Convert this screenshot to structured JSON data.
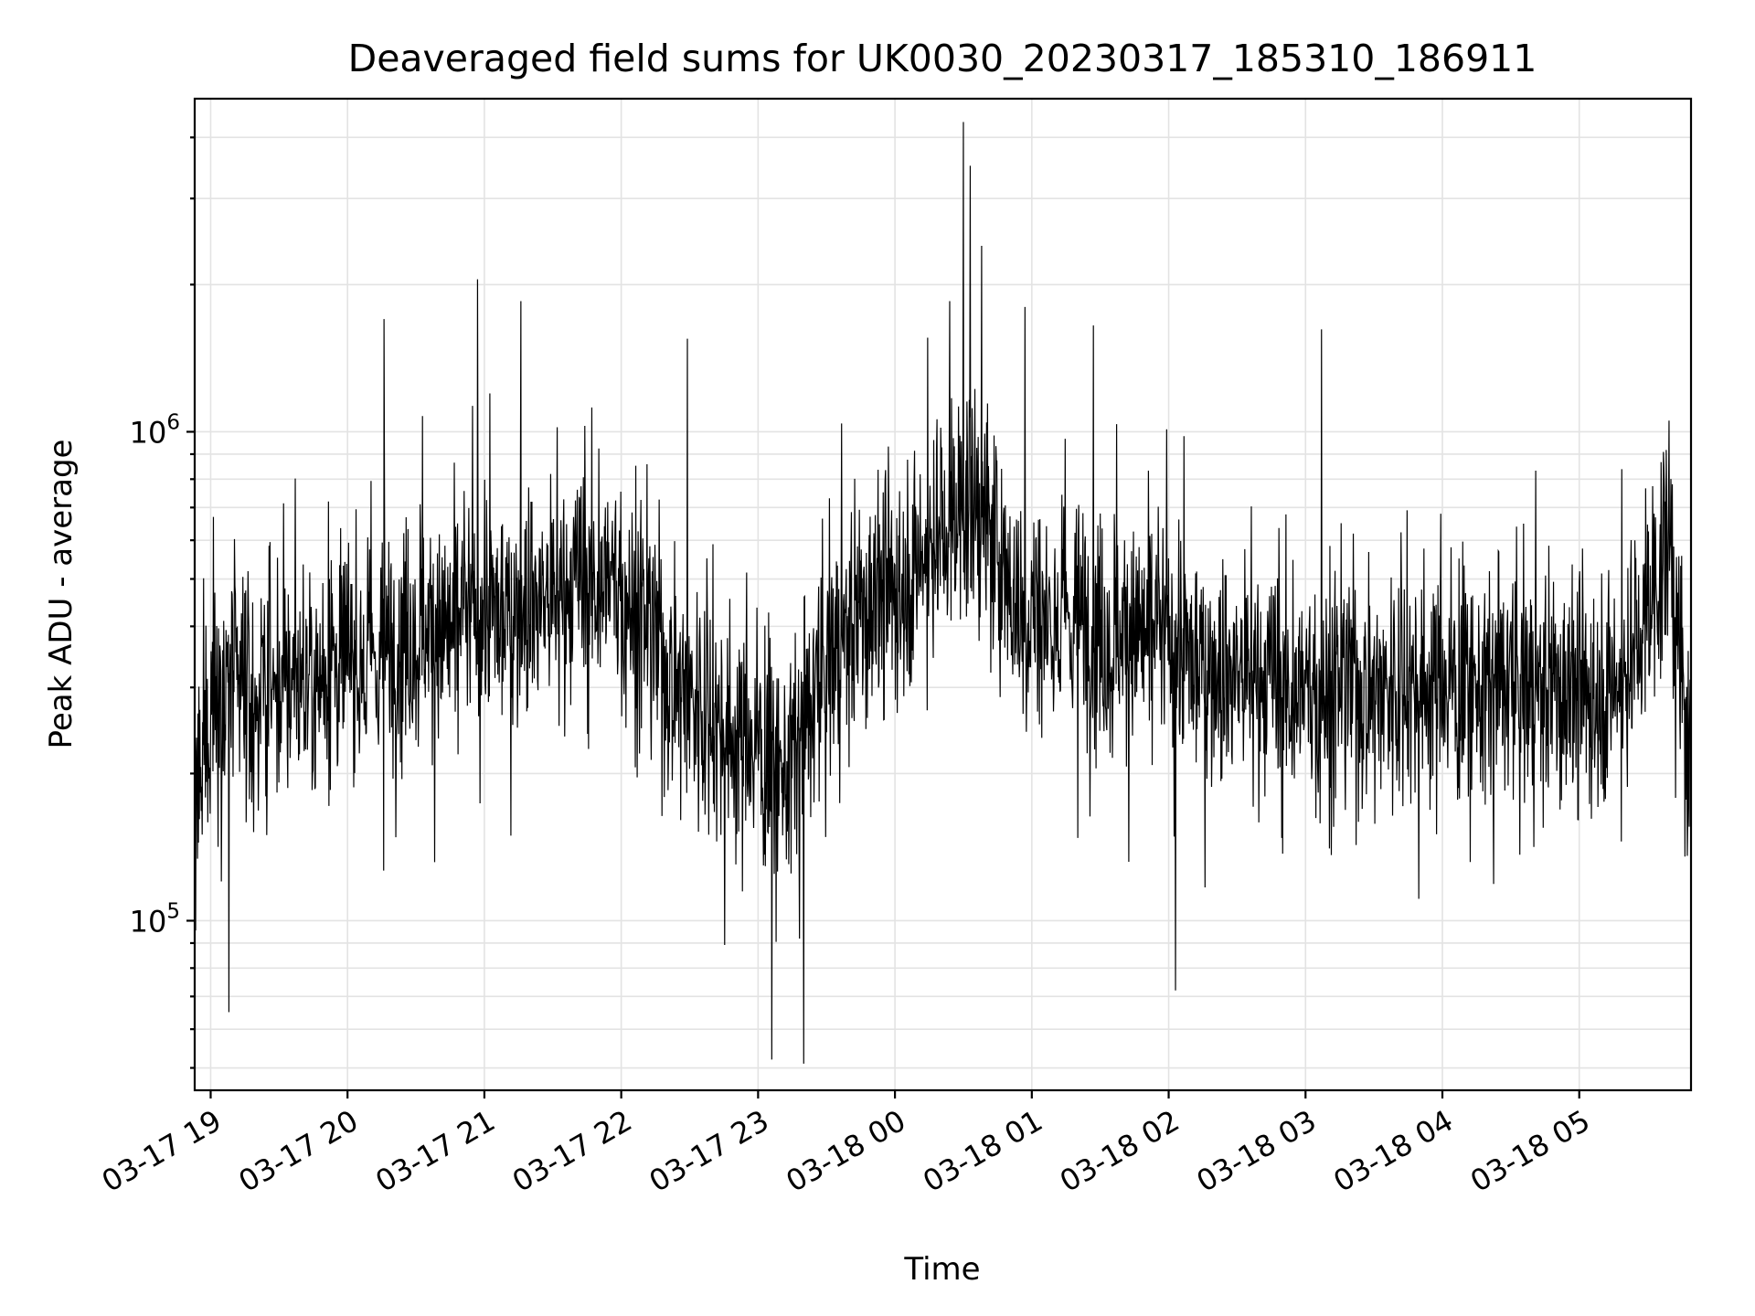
{
  "chart_data": {
    "type": "line",
    "title": "Deaveraged field sums for UK0030_20230317_185310_186911",
    "xlabel": "Time",
    "ylabel": "Peak ADU - average",
    "yscale": "log",
    "grid": true,
    "line_color": "#000000",
    "xlim": [
      "2023-03-17 18:53",
      "2023-03-18 05:49"
    ],
    "ylim": [
      45000,
      4800000
    ],
    "x_ticks": [
      "03-17 19",
      "03-17 20",
      "03-17 21",
      "03-17 22",
      "03-17 23",
      "03-18 00",
      "03-18 01",
      "03-18 02",
      "03-18 03",
      "03-18 04",
      "03-18 05"
    ],
    "y_ticks": [
      {
        "mantissa": "10",
        "exponent": "5",
        "value": 100000
      },
      {
        "mantissa": "10",
        "exponent": "6",
        "value": 1000000
      }
    ],
    "series": [
      {
        "x": [
          "2023-03-17 18:53",
          "2023-03-17 19:00",
          "2023-03-17 19:10",
          "2023-03-17 19:20",
          "2023-03-17 19:30",
          "2023-03-17 19:40",
          "2023-03-17 19:50",
          "2023-03-17 20:00",
          "2023-03-17 20:10",
          "2023-03-17 20:20",
          "2023-03-17 20:30",
          "2023-03-17 20:40",
          "2023-03-17 20:50",
          "2023-03-17 21:00",
          "2023-03-17 21:10",
          "2023-03-17 21:20",
          "2023-03-17 21:30",
          "2023-03-17 21:40",
          "2023-03-17 21:50",
          "2023-03-17 22:00",
          "2023-03-17 22:10",
          "2023-03-17 22:20",
          "2023-03-17 22:30",
          "2023-03-17 22:40",
          "2023-03-17 22:50",
          "2023-03-17 23:00",
          "2023-03-17 23:10",
          "2023-03-17 23:20",
          "2023-03-17 23:30",
          "2023-03-17 23:40",
          "2023-03-17 23:50",
          "2023-03-18 00:00",
          "2023-03-18 00:10",
          "2023-03-18 00:20",
          "2023-03-18 00:30",
          "2023-03-18 00:40",
          "2023-03-18 00:50",
          "2023-03-18 01:00",
          "2023-03-18 01:10",
          "2023-03-18 01:20",
          "2023-03-18 01:30",
          "2023-03-18 01:40",
          "2023-03-18 01:50",
          "2023-03-18 02:00",
          "2023-03-18 02:10",
          "2023-03-18 02:20",
          "2023-03-18 02:30",
          "2023-03-18 02:40",
          "2023-03-18 02:50",
          "2023-03-18 03:00",
          "2023-03-18 03:10",
          "2023-03-18 03:20",
          "2023-03-18 03:30",
          "2023-03-18 03:40",
          "2023-03-18 03:50",
          "2023-03-18 04:00",
          "2023-03-18 04:10",
          "2023-03-18 04:20",
          "2023-03-18 04:30",
          "2023-03-18 04:40",
          "2023-03-18 04:50",
          "2023-03-18 05:00",
          "2023-03-18 05:10",
          "2023-03-18 05:20",
          "2023-03-18 05:30",
          "2023-03-18 05:40",
          "2023-03-18 05:49"
        ],
        "y": [
          150000,
          280000,
          300000,
          290000,
          300000,
          310000,
          330000,
          350000,
          340000,
          360000,
          420000,
          380000,
          400000,
          430000,
          420000,
          460000,
          450000,
          480000,
          500000,
          470000,
          400000,
          330000,
          290000,
          260000,
          240000,
          230000,
          200000,
          240000,
          330000,
          400000,
          450000,
          480000,
          540000,
          620000,
          720000,
          650000,
          480000,
          420000,
          420000,
          410000,
          400000,
          390000,
          380000,
          370000,
          340000,
          330000,
          320000,
          310000,
          300000,
          290000,
          290000,
          300000,
          300000,
          300000,
          310000,
          310000,
          300000,
          300000,
          300000,
          300000,
          300000,
          290000,
          300000,
          310000,
          450000,
          600000,
          180000
        ],
        "noise_amplitude_decades": 0.55,
        "notable_peaks": [
          {
            "x": "2023-03-17 20:16",
            "y": 1700000
          },
          {
            "x": "2023-03-17 20:57",
            "y": 2050000
          },
          {
            "x": "2023-03-17 21:16",
            "y": 1850000
          },
          {
            "x": "2023-03-17 22:29",
            "y": 1550000
          },
          {
            "x": "2023-03-18 00:24",
            "y": 1850000
          },
          {
            "x": "2023-03-18 00:30",
            "y": 4300000
          },
          {
            "x": "2023-03-18 00:33",
            "y": 3500000
          },
          {
            "x": "2023-03-18 00:38",
            "y": 2400000
          },
          {
            "x": "2023-03-18 00:57",
            "y": 1800000
          },
          {
            "x": "2023-03-18 01:27",
            "y": 1650000
          },
          {
            "x": "2023-03-18 03:07",
            "y": 1620000
          }
        ],
        "notable_troughs": [
          {
            "x": "2023-03-17 19:08",
            "y": 65000
          },
          {
            "x": "2023-03-17 23:06",
            "y": 52000
          },
          {
            "x": "2023-03-17 23:20",
            "y": 51000
          },
          {
            "x": "2023-03-18 02:03",
            "y": 72000
          }
        ]
      }
    ]
  }
}
